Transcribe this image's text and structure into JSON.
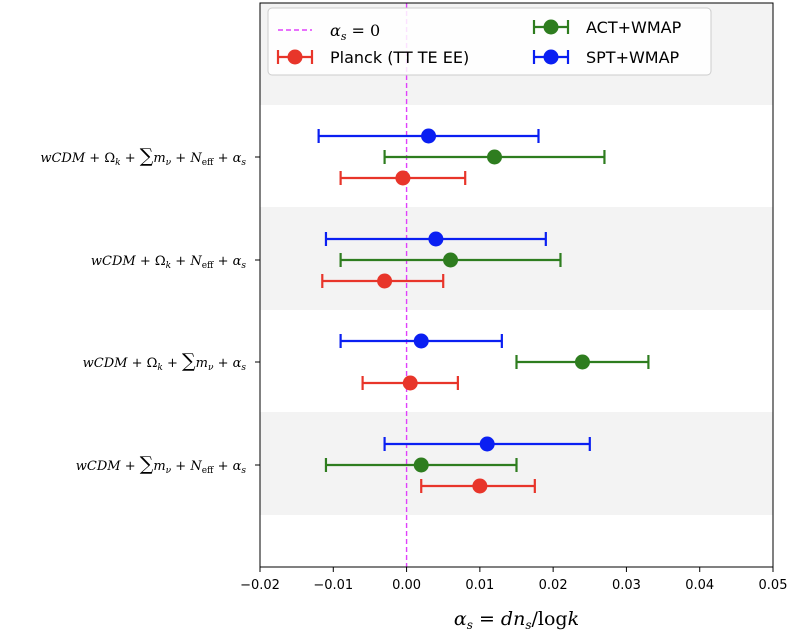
{
  "chart_data": {
    "type": "scatter",
    "subtype": "horizontal-errorbar",
    "title": "",
    "xlabel": "αs = dns/logk",
    "xlim": [
      -0.02,
      0.05
    ],
    "xticks": [
      "−0.02",
      "−0.01",
      "0.00",
      "0.01",
      "0.02",
      "0.03",
      "0.04",
      "0.05"
    ],
    "xtick_values": [
      -0.02,
      -0.01,
      0.0,
      0.01,
      0.02,
      0.03,
      0.04,
      0.05
    ],
    "categories": [
      "wCDM + Ωk + ∑mν + Neff + αs",
      "wCDM + Ωk + Neff + αs",
      "wCDM + Ωk + ∑mν + αs",
      "wCDM + ∑mν + Neff + αs"
    ],
    "reference_line": {
      "x": 0,
      "label": "αs = 0",
      "color": "#e040fb",
      "style": "dashed"
    },
    "series": [
      {
        "name": "SPT+WMAP",
        "color": "#0a1ff2",
        "values": [
          0.003,
          0.004,
          0.002,
          0.011
        ],
        "lower": [
          -0.012,
          -0.011,
          -0.009,
          -0.003
        ],
        "upper": [
          0.018,
          0.019,
          0.013,
          0.025
        ]
      },
      {
        "name": "ACT+WMAP",
        "color": "#2e7d1f",
        "values": [
          0.012,
          0.006,
          0.024,
          0.002
        ],
        "lower": [
          -0.003,
          -0.009,
          0.015,
          -0.011
        ],
        "upper": [
          0.027,
          0.021,
          0.033,
          0.015
        ]
      },
      {
        "name": "Planck (TT TE EE)",
        "color": "#e8352a",
        "values": [
          -0.0005,
          -0.003,
          0.0005,
          0.01
        ],
        "lower": [
          -0.009,
          -0.0115,
          -0.006,
          0.002
        ],
        "upper": [
          0.008,
          0.005,
          0.007,
          0.0175
        ]
      }
    ],
    "grid": false,
    "band_shading": "alternating light grey rows",
    "legend": {
      "placement": "top",
      "entries": [
        "αs = 0",
        "Planck (TT TE EE)",
        "ACT+WMAP",
        "SPT+WMAP"
      ]
    }
  }
}
